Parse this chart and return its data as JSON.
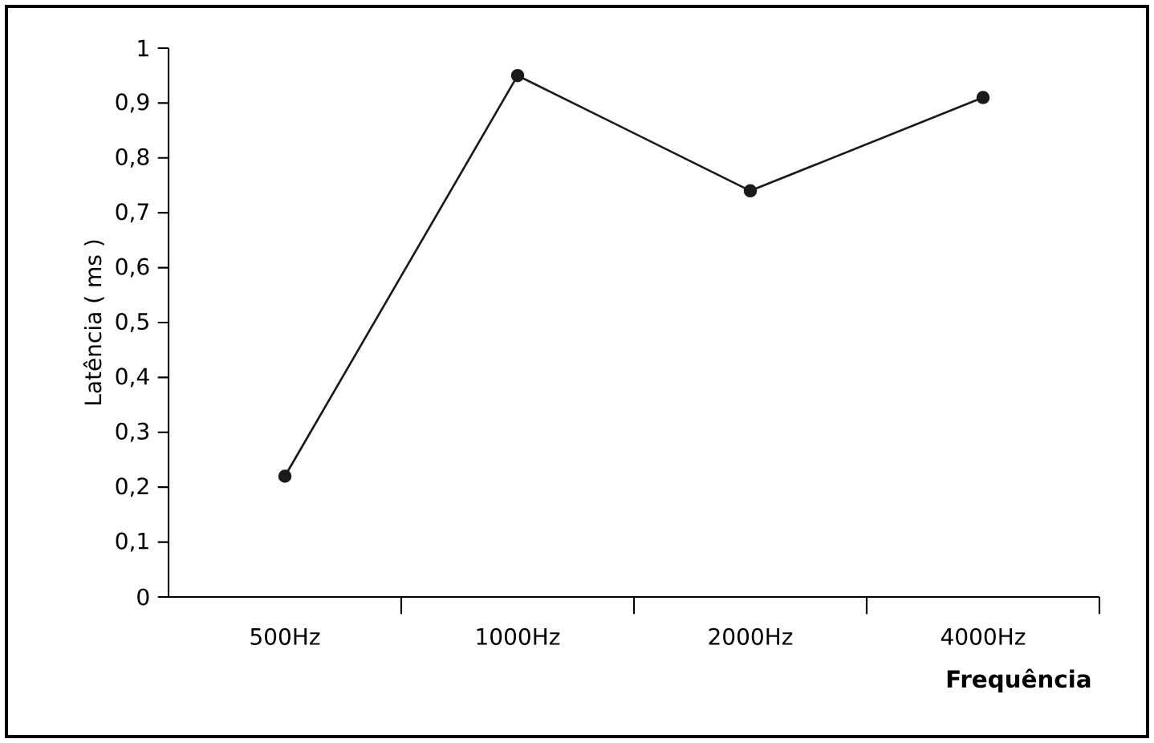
{
  "chart_data": {
    "type": "line",
    "xlabel": "Frequência",
    "ylabel": "Latência ( ms )",
    "categories": [
      "500Hz",
      "1000Hz",
      "2000Hz",
      "4000Hz"
    ],
    "series": [
      {
        "color": "#1a1a1a",
        "values": [
          0.22,
          0.95,
          0.74,
          0.91
        ]
      }
    ],
    "ylim": [
      0,
      1
    ],
    "yticks": [
      0,
      {
        "value": 0.1,
        "label": "0,1"
      },
      {
        "value": 0.2,
        "label": "0,2"
      },
      {
        "value": 0.3,
        "label": "0,3"
      },
      {
        "value": 0.4,
        "label": "0,4"
      },
      {
        "value": 0.5,
        "label": "0,5"
      },
      {
        "value": 0.6,
        "label": "0,6"
      },
      {
        "value": 0.7,
        "label": "0,7"
      },
      {
        "value": 0.8,
        "label": "0,8"
      },
      {
        "value": 0.9,
        "label": "0,9"
      },
      1
    ],
    "marker": "circle",
    "line_style": "solid"
  }
}
